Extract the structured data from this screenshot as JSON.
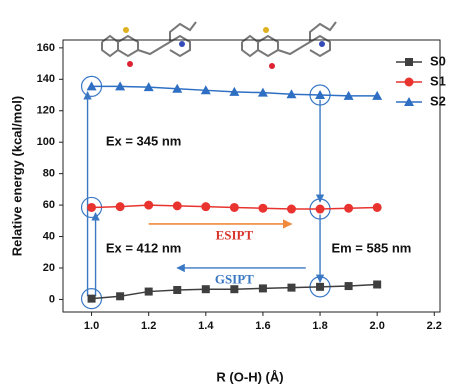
{
  "chart_data": {
    "type": "line",
    "x_label": "R (O-H) (Å)",
    "y_label": "Relative energy (kcal/mol)",
    "x": [
      1.0,
      1.1,
      1.2,
      1.3,
      1.4,
      1.5,
      1.6,
      1.7,
      1.8,
      1.9,
      2.0
    ],
    "series": [
      {
        "name": "S0",
        "color": "#3f3f3f",
        "marker": "square",
        "values": [
          0.5,
          2,
          5,
          6,
          6.5,
          6.5,
          7,
          7.5,
          8,
          8.5,
          9.5
        ]
      },
      {
        "name": "S1",
        "color": "#e8332f",
        "marker": "circle",
        "values": [
          58.5,
          59,
          60,
          59.5,
          59,
          58.5,
          58,
          57.5,
          57.5,
          58,
          58.5
        ]
      },
      {
        "name": "S2",
        "color": "#2e6fc4",
        "marker": "triangle",
        "values": [
          135.5,
          135.5,
          135,
          134,
          133,
          132,
          131.5,
          130.5,
          130,
          129.5,
          129.5
        ]
      }
    ],
    "xlim": [
      0.9,
      2.22
    ],
    "ylim": [
      -8,
      165
    ],
    "xticks": [
      {
        "value": 1.0,
        "label": "1.0"
      },
      1.2,
      1.4,
      1.6,
      1.8,
      {
        "value": 2.0,
        "label": "2.0"
      },
      2.2
    ],
    "yticks": [
      0,
      20,
      40,
      60,
      80,
      100,
      120,
      140,
      160
    ],
    "annotations": [
      {
        "text": "Ex = 345 nm",
        "color": "#111111"
      },
      {
        "text": "Ex = 412 nm",
        "color": "#111111"
      },
      {
        "text": "Em = 585 nm",
        "color": "#111111"
      },
      {
        "text": "ESIPT",
        "color": "#d9342b"
      },
      {
        "text": "GSIPT",
        "color": "#3a78c4"
      }
    ],
    "legend": "top-right"
  }
}
